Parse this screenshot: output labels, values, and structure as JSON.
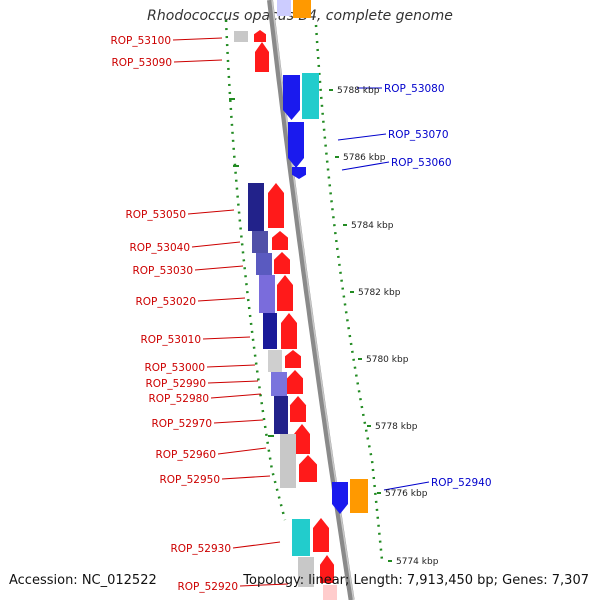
{
  "title": "Rhodococcus opacus B4, complete genome",
  "accession": "Accession: NC_012522",
  "summary": "Topology: linear; Length: 7,913,450 bp; Genes: 7,307",
  "colors": {
    "backbone": "#8a8a8a",
    "tick": "#228b22",
    "left_label": "#cc0000",
    "right_label": "#0000cc",
    "red_gene": "#ff1a1a",
    "blue_gene": "#1a1aee",
    "cyan_gene": "#22cccc",
    "orange_gene": "#ff9900",
    "gray_gene": "#bfbfbf"
  },
  "scale_labels": [
    "5788 kbp",
    "5786 kbp",
    "5784 kbp",
    "5782 kbp",
    "5780 kbp",
    "5778 kbp",
    "5776 kbp",
    "5774 kbp"
  ],
  "left_genes": [
    "ROP_53100",
    "ROP_53090",
    "ROP_53050",
    "ROP_53040",
    "ROP_53030",
    "ROP_53020",
    "ROP_53010",
    "ROP_53000",
    "ROP_52990",
    "ROP_52980",
    "ROP_52970",
    "ROP_52960",
    "ROP_52950",
    "ROP_52930",
    "ROP_52920"
  ],
  "right_genes": [
    "ROP_53080",
    "ROP_53070",
    "ROP_53060",
    "ROP_52940"
  ]
}
